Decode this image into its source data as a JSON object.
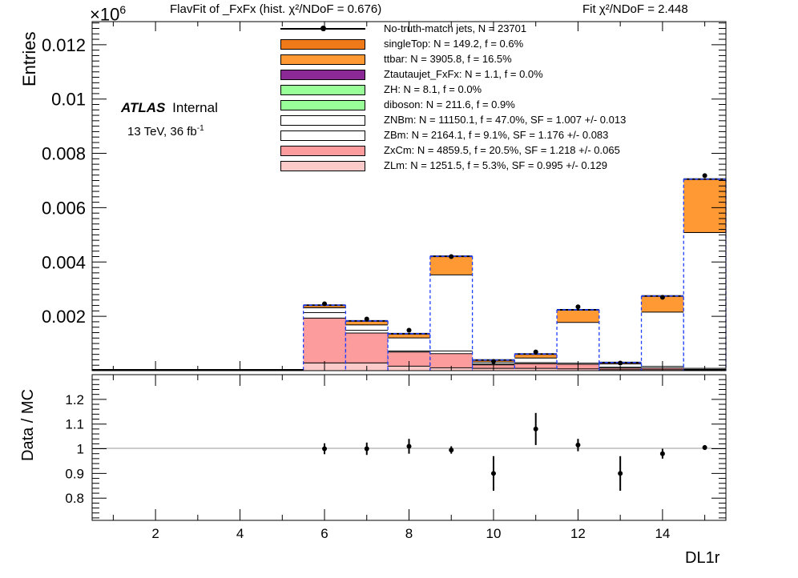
{
  "header": {
    "title": "FlavFit of _FxFx (hist.  χ²/NDoF = 0.676)",
    "fit_chi2": "Fit  χ²/NDoF = 2.448",
    "scale_factor": "×10",
    "scale_exponent": "6"
  },
  "atlas_label": {
    "bold": "ATLAS",
    "status": "Internal",
    "energy": "13 TeV,  36 fb",
    "lumi_exp": "-1"
  },
  "legend": [
    {
      "label": "No-truth-match jets, N = 23701",
      "color": "#000000",
      "kind": "data"
    },
    {
      "label": "singleTop: N = 149.2, f = 0.6%",
      "color": "#f07a1a",
      "kind": "fill"
    },
    {
      "label": "ttbar: N = 3905.8, f = 16.5%",
      "color": "#ff9933",
      "kind": "fill"
    },
    {
      "label": "Ztautaujet_FxFx: N = 1.1, f = 0.0%",
      "color": "#8b2a96",
      "kind": "fill"
    },
    {
      "label": "ZH: N = 8.1, f = 0.0%",
      "color": "#99ff99",
      "kind": "fill"
    },
    {
      "label": "diboson: N = 211.6, f = 0.9%",
      "color": "#99ff99",
      "kind": "fill"
    },
    {
      "label": "ZNBm: N = 11150.1, f = 47.0%, SF = 1.007 +/- 0.013",
      "color": "#ffffff",
      "kind": "fill"
    },
    {
      "label": "ZBm: N = 2164.1, f = 9.1%, SF = 1.176 +/- 0.083",
      "color": "#ffffff",
      "kind": "fill"
    },
    {
      "label": "ZxCm: N = 4859.5, f = 20.5%, SF = 1.218 +/- 0.065",
      "color": "#fc9c9c",
      "kind": "fill"
    },
    {
      "label": "ZLm: N = 1251.5, f = 5.3%, SF = 0.995 +/- 0.129",
      "color": "#fdcaca",
      "kind": "fill"
    }
  ],
  "chart_data": [
    {
      "type": "bar",
      "subtype": "stacked-histogram",
      "ylabel": "Entries",
      "xlim": [
        0.5,
        15.5
      ],
      "ylim": [
        0,
        0.01285
      ],
      "y_scale_factor": "×10^6",
      "yticks": [
        "0.002",
        "0.004",
        "0.006",
        "0.008",
        "0.01",
        "0.012"
      ],
      "bins": [
        6,
        7,
        8,
        9,
        10,
        11,
        12,
        13,
        14,
        15
      ],
      "stack_order": [
        "ZLm",
        "ZxCm",
        "ZBm",
        "ZNBm",
        "ttbar"
      ],
      "series": [
        {
          "name": "ZLm",
          "color": "#fdcaca",
          "values": [
            0.0003,
            0.0003,
            0.00018,
            0.00012,
            0.0001,
            0.0001,
            8e-05,
            5e-05,
            5e-05,
            3e-05
          ]
        },
        {
          "name": "ZxCm",
          "color": "#fc9c9c",
          "values": [
            0.00165,
            0.0011,
            0.00052,
            0.00052,
            0.00013,
            0.00017,
            0.00017,
            6e-05,
            6e-05,
            3e-05
          ]
        },
        {
          "name": "ZBm",
          "color": "#ffffff",
          "values": [
            0.0002,
            0.0001,
            4e-05,
            0.0001,
            3e-05,
            4e-05,
            4e-05,
            3e-05,
            6e-05,
            4e-05
          ]
        },
        {
          "name": "ZNBm",
          "color": "#ffffff",
          "values": [
            0.00018,
            0.0002,
            0.00048,
            0.0028,
            7e-05,
            0.00017,
            0.0015,
            0.00012,
            0.002,
            0.005
          ]
        },
        {
          "name": "ttbar",
          "color": "#ff9933",
          "values": [
            8e-05,
            0.00013,
            0.00014,
            0.00067,
            6e-05,
            0.00013,
            0.00045,
            4e-05,
            0.00058,
            0.00195
          ]
        }
      ],
      "data_points": [
        0.00246,
        0.0019,
        0.00149,
        0.0042,
        0.00034,
        0.00069,
        0.00235,
        0.00028,
        0.0027,
        0.00718
      ]
    },
    {
      "type": "scatter",
      "xlabel": "DL1r",
      "ylabel": "Data / MC",
      "xlim": [
        0.5,
        15.5
      ],
      "ylim": [
        0.71,
        1.3
      ],
      "xticks": [
        "2",
        "4",
        "6",
        "8",
        "10",
        "12",
        "14"
      ],
      "yticks": [
        "0.8",
        "0.9",
        "1",
        "1.1",
        "1.2"
      ],
      "reference_line": 1.0,
      "x": [
        6,
        7,
        8,
        9,
        10,
        11,
        12,
        13,
        14,
        15
      ],
      "y": [
        1.0,
        1.0,
        1.01,
        0.995,
        0.9,
        1.08,
        1.015,
        0.9,
        0.98,
        1.005
      ],
      "err": [
        0.022,
        0.025,
        0.03,
        0.015,
        0.07,
        0.065,
        0.025,
        0.07,
        0.02,
        0.01
      ]
    }
  ]
}
